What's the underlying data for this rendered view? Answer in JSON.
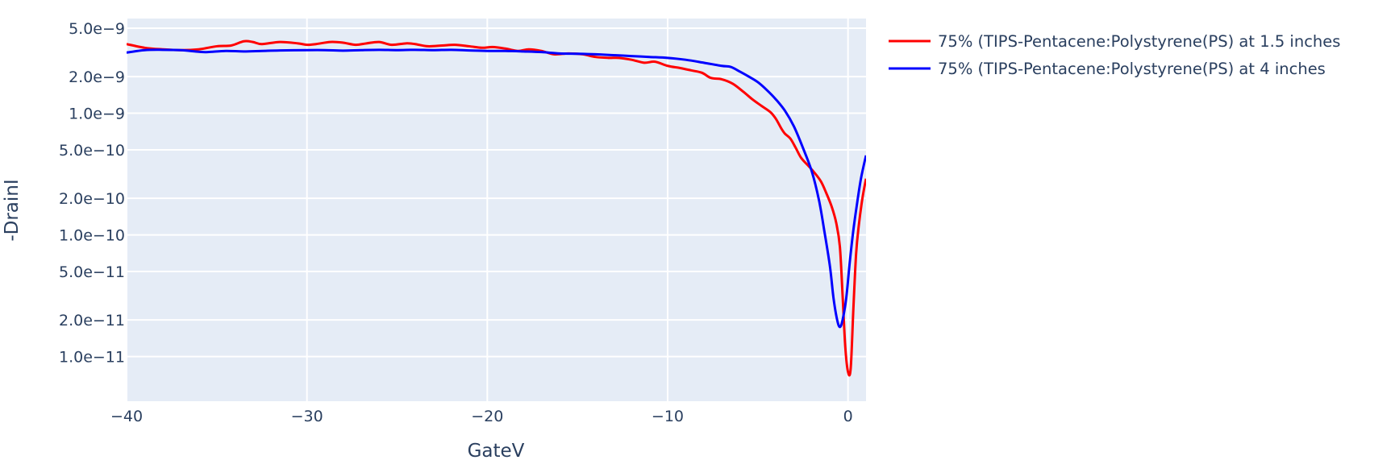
{
  "chart_data": {
    "type": "line",
    "title": "",
    "xlabel": "GateV",
    "ylabel": "-DrainI",
    "xlim": [
      -40,
      1
    ],
    "ylim": [
      4.3e-12,
      6e-09
    ],
    "y_scale": "log",
    "grid": true,
    "legend_position": "top-right outside",
    "plot_background": "#e5ecf6",
    "x_ticks": [
      {
        "value": -40,
        "label": "−40"
      },
      {
        "value": -30,
        "label": "−30"
      },
      {
        "value": -20,
        "label": "−20"
      },
      {
        "value": -10,
        "label": "−10"
      },
      {
        "value": 0,
        "label": "0"
      }
    ],
    "y_ticks": [
      {
        "value": 5e-09,
        "label": "5.0e−9"
      },
      {
        "value": 2e-09,
        "label": "2.0e−9"
      },
      {
        "value": 1e-09,
        "label": "1.0e−9"
      },
      {
        "value": 5e-10,
        "label": "5.0e−10"
      },
      {
        "value": 2e-10,
        "label": "2.0e−10"
      },
      {
        "value": 1e-10,
        "label": "1.0e−10"
      },
      {
        "value": 5e-11,
        "label": "5.0e−11"
      },
      {
        "value": 2e-11,
        "label": "2.0e−11"
      },
      {
        "value": 1e-11,
        "label": "1.0e−11"
      }
    ],
    "series": [
      {
        "name": "75% (TIPS-Pentacene:Polystyrene(PS) at 1.5 inches",
        "color": "#ff0000",
        "points": [
          [
            -40,
            3.7e-09
          ],
          [
            -39,
            3.45e-09
          ],
          [
            -38,
            3.35e-09
          ],
          [
            -37,
            3.3e-09
          ],
          [
            -36,
            3.35e-09
          ],
          [
            -35,
            3.55e-09
          ],
          [
            -34.2,
            3.6e-09
          ],
          [
            -33.5,
            3.9e-09
          ],
          [
            -33,
            3.85e-09
          ],
          [
            -32.5,
            3.7e-09
          ],
          [
            -31.5,
            3.85e-09
          ],
          [
            -30.5,
            3.75e-09
          ],
          [
            -30,
            3.65e-09
          ],
          [
            -29.5,
            3.7e-09
          ],
          [
            -28.7,
            3.85e-09
          ],
          [
            -28,
            3.8e-09
          ],
          [
            -27.3,
            3.65e-09
          ],
          [
            -26.7,
            3.75e-09
          ],
          [
            -26,
            3.85e-09
          ],
          [
            -25.3,
            3.65e-09
          ],
          [
            -24.5,
            3.75e-09
          ],
          [
            -24,
            3.7e-09
          ],
          [
            -23.3,
            3.55e-09
          ],
          [
            -22.5,
            3.6e-09
          ],
          [
            -21.8,
            3.65e-09
          ],
          [
            -21,
            3.55e-09
          ],
          [
            -20.3,
            3.45e-09
          ],
          [
            -19.7,
            3.5e-09
          ],
          [
            -19,
            3.4e-09
          ],
          [
            -18.3,
            3.25e-09
          ],
          [
            -17.7,
            3.35e-09
          ],
          [
            -17,
            3.25e-09
          ],
          [
            -16.3,
            3.05e-09
          ],
          [
            -15.5,
            3.1e-09
          ],
          [
            -14.7,
            3.05e-09
          ],
          [
            -14,
            2.9e-09
          ],
          [
            -13.3,
            2.85e-09
          ],
          [
            -12.7,
            2.85e-09
          ],
          [
            -12,
            2.75e-09
          ],
          [
            -11.3,
            2.6e-09
          ],
          [
            -10.7,
            2.65e-09
          ],
          [
            -10,
            2.45e-09
          ],
          [
            -9.3,
            2.35e-09
          ],
          [
            -8.7,
            2.25e-09
          ],
          [
            -8.1,
            2.15e-09
          ],
          [
            -7.6,
            1.95e-09
          ],
          [
            -7,
            1.9e-09
          ],
          [
            -6.4,
            1.75e-09
          ],
          [
            -5.8,
            1.5e-09
          ],
          [
            -5.3,
            1.3e-09
          ],
          [
            -4.8,
            1.15e-09
          ],
          [
            -4.3,
            1.02e-09
          ],
          [
            -4.0,
            9e-10
          ],
          [
            -3.7,
            7.5e-10
          ],
          [
            -3.5,
            6.8e-10
          ],
          [
            -3.2,
            6.2e-10
          ],
          [
            -2.9,
            5.2e-10
          ],
          [
            -2.6,
            4.3e-10
          ],
          [
            -2.2,
            3.7e-10
          ],
          [
            -1.9,
            3.3e-10
          ],
          [
            -1.5,
            2.75e-10
          ],
          [
            -1.2,
            2.2e-10
          ],
          [
            -0.9,
            1.7e-10
          ],
          [
            -0.65,
            1.25e-10
          ],
          [
            -0.45,
            8e-11
          ],
          [
            -0.3,
            3.2e-11
          ],
          [
            -0.15,
            1.2e-11
          ],
          [
            0,
            7.5e-12
          ],
          [
            0.15,
            8e-12
          ],
          [
            0.3,
            2.5e-11
          ],
          [
            0.45,
            7e-11
          ],
          [
            0.6,
            1.2e-10
          ],
          [
            0.8,
            2e-10
          ],
          [
            1.0,
            2.9e-10
          ]
        ]
      },
      {
        "name": "75% (TIPS-Pentacene:Polystyrene(PS) at 4 inches",
        "color": "#0000ff",
        "points": [
          [
            -40,
            3.15e-09
          ],
          [
            -39,
            3.3e-09
          ],
          [
            -38,
            3.32e-09
          ],
          [
            -37,
            3.3e-09
          ],
          [
            -36,
            3.2e-09
          ],
          [
            -35.5,
            3.18e-09
          ],
          [
            -34.5,
            3.25e-09
          ],
          [
            -33.5,
            3.22e-09
          ],
          [
            -32.5,
            3.25e-09
          ],
          [
            -31.5,
            3.28e-09
          ],
          [
            -30,
            3.3e-09
          ],
          [
            -29,
            3.3e-09
          ],
          [
            -28,
            3.27e-09
          ],
          [
            -27,
            3.3e-09
          ],
          [
            -26,
            3.32e-09
          ],
          [
            -25,
            3.3e-09
          ],
          [
            -24,
            3.32e-09
          ],
          [
            -23,
            3.3e-09
          ],
          [
            -22,
            3.32e-09
          ],
          [
            -21,
            3.28e-09
          ],
          [
            -20,
            3.25e-09
          ],
          [
            -19,
            3.25e-09
          ],
          [
            -18,
            3.22e-09
          ],
          [
            -17,
            3.18e-09
          ],
          [
            -16,
            3.1e-09
          ],
          [
            -15,
            3.08e-09
          ],
          [
            -14,
            3.05e-09
          ],
          [
            -13,
            3e-09
          ],
          [
            -12,
            2.95e-09
          ],
          [
            -11,
            2.9e-09
          ],
          [
            -10,
            2.85e-09
          ],
          [
            -9,
            2.75e-09
          ],
          [
            -8,
            2.6e-09
          ],
          [
            -7,
            2.45e-09
          ],
          [
            -6.5,
            2.4e-09
          ],
          [
            -6,
            2.2e-09
          ],
          [
            -5.5,
            2e-09
          ],
          [
            -5,
            1.8e-09
          ],
          [
            -4.5,
            1.55e-09
          ],
          [
            -4,
            1.3e-09
          ],
          [
            -3.5,
            1.05e-09
          ],
          [
            -3,
            7.8e-10
          ],
          [
            -2.5,
            5.2e-10
          ],
          [
            -2,
            3.3e-10
          ],
          [
            -1.6,
            1.9e-10
          ],
          [
            -1.3,
            1.05e-10
          ],
          [
            -1.0,
            5.5e-11
          ],
          [
            -0.8,
            3e-11
          ],
          [
            -0.6,
            2e-11
          ],
          [
            -0.45,
            1.75e-11
          ],
          [
            -0.3,
            2e-11
          ],
          [
            -0.1,
            3e-11
          ],
          [
            0.1,
            6e-11
          ],
          [
            0.3,
            1.1e-10
          ],
          [
            0.5,
            1.8e-10
          ],
          [
            0.7,
            2.8e-10
          ],
          [
            0.85,
            3.6e-10
          ],
          [
            1.0,
            4.5e-10
          ]
        ]
      }
    ]
  }
}
